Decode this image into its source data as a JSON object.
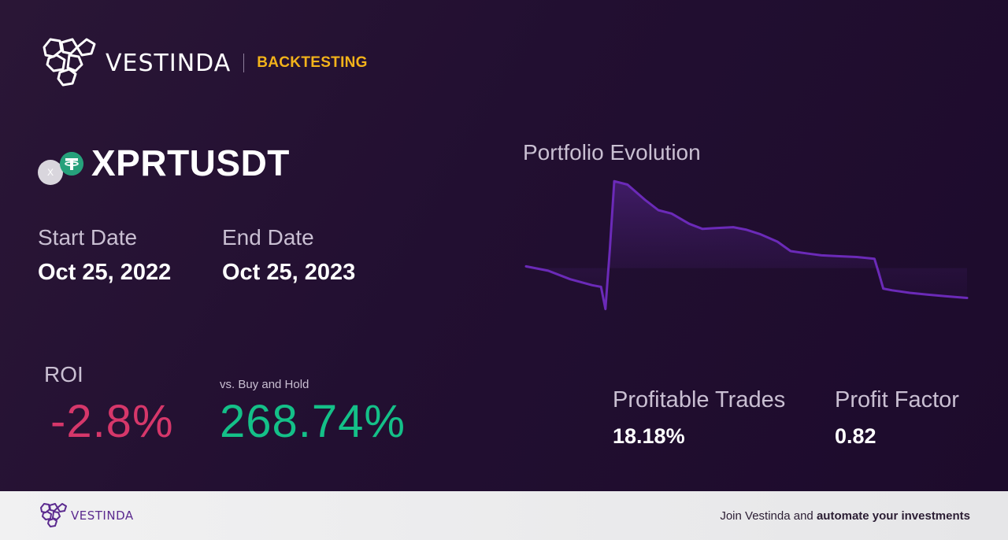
{
  "header": {
    "brand_name": "VESTINDA",
    "tag": "BACKTESTING"
  },
  "pair": {
    "symbol": "XPRTUSDT",
    "base_icon_letter": "X",
    "base_icon": "xprt-coin-icon",
    "quote_icon": "tether-icon"
  },
  "dates": {
    "start_label": "Start Date",
    "start_value": "Oct 25, 2022",
    "end_label": "End Date",
    "end_value": "Oct 25, 2023"
  },
  "roi": {
    "label": "ROI",
    "value": "-2.8%",
    "vs_label": "vs. Buy and Hold",
    "vs_value": "268.74%"
  },
  "chart_data": {
    "type": "area",
    "title": "Portfolio Evolution",
    "xlabel": "",
    "ylabel": "",
    "grid": false,
    "x": [
      0,
      0.05,
      0.1,
      0.15,
      0.17,
      0.18,
      0.19,
      0.2,
      0.23,
      0.27,
      0.3,
      0.33,
      0.37,
      0.4,
      0.43,
      0.47,
      0.5,
      0.53,
      0.57,
      0.6,
      0.64,
      0.67,
      0.71,
      0.75,
      0.79,
      0.8,
      0.81,
      0.83,
      0.87,
      0.91,
      0.95,
      1.0
    ],
    "series": [
      {
        "values": [
          0.0,
          -0.05,
          -0.15,
          -0.22,
          -0.24,
          -0.5,
          0.2,
          1.0,
          0.96,
          0.78,
          0.66,
          0.62,
          0.5,
          0.44,
          0.45,
          0.46,
          0.43,
          0.38,
          0.29,
          0.18,
          0.15,
          0.13,
          0.12,
          0.11,
          0.09,
          -0.08,
          -0.26,
          -0.28,
          -0.31,
          -0.33,
          -0.35,
          -0.37
        ],
        "color": "#6b2ab8"
      }
    ]
  },
  "stats": {
    "profitable_label": "Profitable Trades",
    "profitable_value": "18.18%",
    "factor_label": "Profit Factor",
    "factor_value": "0.82"
  },
  "footer": {
    "brand_name": "VESTINDA",
    "cta_prefix": "Join Vestinda and ",
    "cta_bold": "automate your investments"
  },
  "colors": {
    "accent_yellow": "#f3b31a",
    "roi_negative": "#d6376a",
    "roi_positive": "#14c088",
    "chart_line": "#6b2ab8"
  }
}
